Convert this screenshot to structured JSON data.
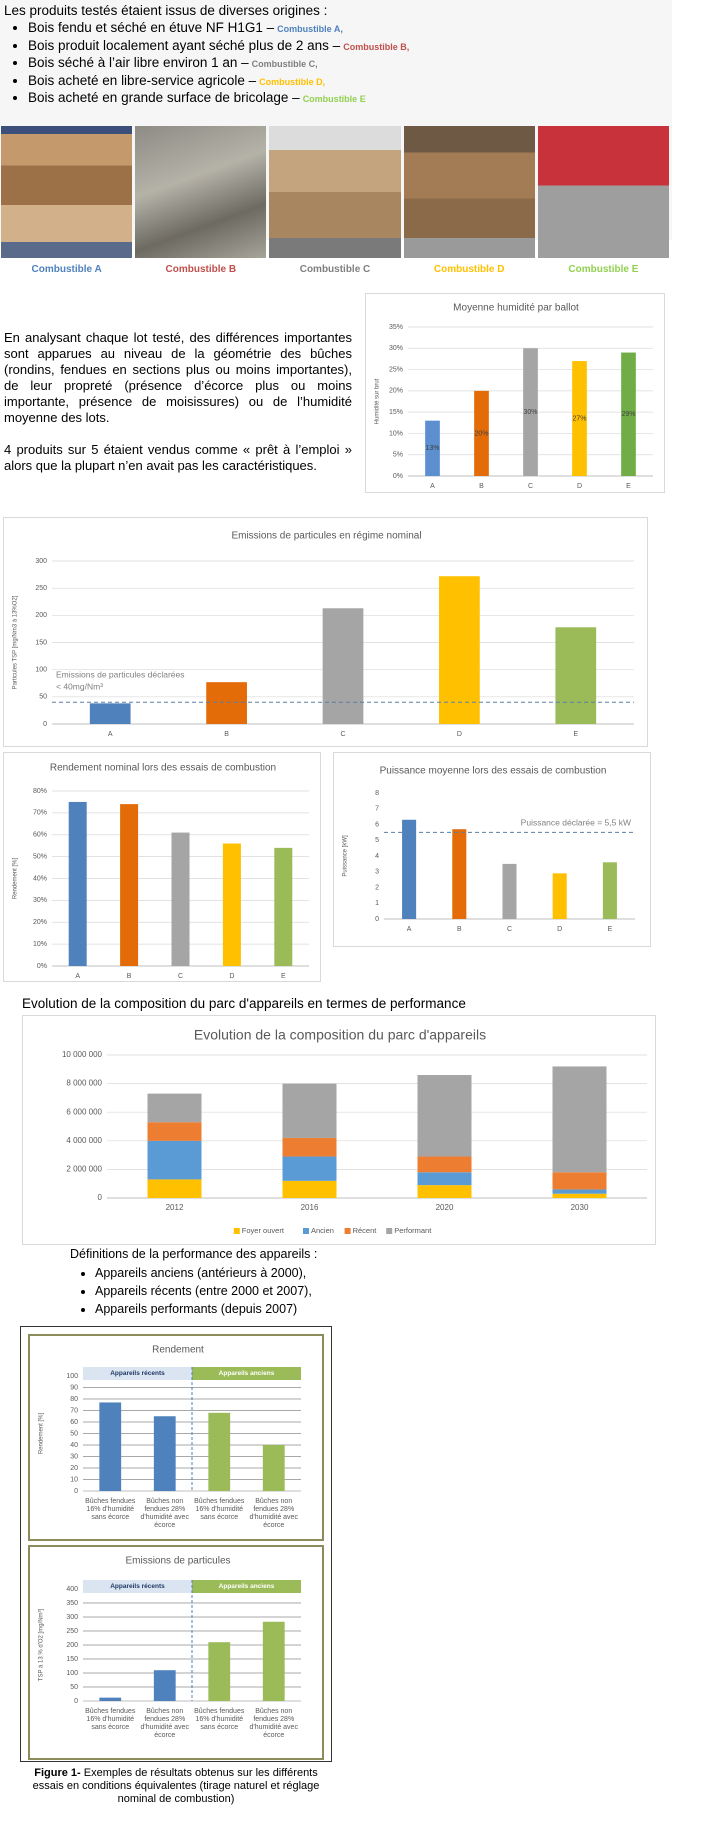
{
  "intro": {
    "heading": "Les produits testés étaient issus de diverses origines :",
    "items": [
      {
        "text": "Bois fendu et séché en étuve NF H1G1 –",
        "label": "Combustible A,",
        "color": "#4f81bd"
      },
      {
        "text": "Bois produit localement ayant séché plus de 2 ans –",
        "label": "Combustible B,",
        "color": "#c0504d"
      },
      {
        "text": "Bois séché à l’air libre environ 1 an –",
        "label": "Combustible C,",
        "color": "#7f7f7f"
      },
      {
        "text": "Bois acheté en libre-service agricole –",
        "label": "Combustible D,",
        "color": "#ffc000"
      },
      {
        "text": "Bois acheté en grande surface de bricolage –",
        "label": "Combustible E",
        "color": "#92d050"
      }
    ]
  },
  "photos": {
    "captions": [
      {
        "text": "Combustible A",
        "color": "#4f81bd"
      },
      {
        "text": "Combustible B",
        "color": "#c0504d"
      },
      {
        "text": "Combustible C",
        "color": "#7f7f7f"
      },
      {
        "text": "Combustible D",
        "color": "#ffc000"
      },
      {
        "text": "Combustible E",
        "color": "#92d050"
      }
    ]
  },
  "analysis": {
    "paragraphs": [
      "En analysant chaque lot testé, des différences importantes sont apparues au niveau de la géométrie des bûches (rondins, fendues en sections plus ou moins importantes), de leur propreté (présence d’écorce plus ou moins importante, présence de moisissures) ou de l’humidité moyenne des lots.",
      "4 produits sur 5 étaient vendus comme « prêt à l’emploi » alors que la plupart n’en avait pas les caractéristiques."
    ]
  },
  "section_title": "Evolution de la composition du parc d'appareils en termes de performance",
  "definitions": {
    "heading": "Définitions de la performance des appareils :",
    "items": [
      "Appareils anciens (antérieurs à 2000),",
      "Appareils récents (entre 2000 et 2007),",
      "Appareils performants (depuis 2007)"
    ]
  },
  "figure_caption": {
    "label": "Figure 1-",
    "text": "Exemples de résultats obtenus sur les différents essais en conditions équivalentes (tirage naturel et réglage nominal de combustion)"
  },
  "chart_data": [
    {
      "type": "bar",
      "title": "Moyenne humidité par ballot",
      "y_label": "Humidité sur brut",
      "categories": [
        "A",
        "B",
        "C",
        "D",
        "E"
      ],
      "values": [
        13,
        20,
        30,
        27,
        29
      ],
      "value_labels": [
        "13%",
        "20%",
        "30%",
        "27%",
        "29%"
      ],
      "colors": [
        "#5b8fd0",
        "#e36c09",
        "#a5a5a5",
        "#ffc000",
        "#70ad47"
      ],
      "ylim": [
        0,
        35
      ],
      "yticks": [
        {
          "value": 0,
          "label": "0%"
        },
        {
          "value": 5,
          "label": "5%"
        },
        {
          "value": 10,
          "label": "10%"
        },
        {
          "value": 15,
          "label": "15%"
        },
        {
          "value": 20,
          "label": "20%"
        },
        {
          "value": 25,
          "label": "25%"
        },
        {
          "value": 30,
          "label": "30%"
        },
        {
          "value": 35,
          "label": "35%"
        }
      ],
      "grid": true
    },
    {
      "type": "bar",
      "title": "Emissions de particules en régime nominal",
      "y_label": "Particules TSP [mg/Nm3 à 13%O2]",
      "categories": [
        "A",
        "B",
        "C",
        "D",
        "E"
      ],
      "values": [
        38,
        77,
        213,
        272,
        178
      ],
      "colors": [
        "#4f81bd",
        "#e36c09",
        "#a5a5a5",
        "#ffc000",
        "#9bbb59"
      ],
      "ylim": [
        0,
        300
      ],
      "yticks": [
        0,
        50,
        100,
        150,
        200,
        250,
        300
      ],
      "grid": true,
      "reference_line": 40,
      "annotations": [
        "Emissions de particules déclarées",
        "< 40mg/Nm³"
      ],
      "annotation_position": "left"
    },
    {
      "type": "bar",
      "title": "Rendement nominal lors des essais de combustion",
      "y_label": "Rendement [%]",
      "categories": [
        "A",
        "B",
        "C",
        "D",
        "E"
      ],
      "values": [
        75,
        74,
        61,
        56,
        54
      ],
      "colors": [
        "#4f81bd",
        "#e36c09",
        "#a5a5a5",
        "#ffc000",
        "#9bbb59"
      ],
      "ylim": [
        0,
        80
      ],
      "yticks": [
        {
          "value": 0,
          "label": "0%"
        },
        {
          "value": 10,
          "label": "10%"
        },
        {
          "value": 20,
          "label": "20%"
        },
        {
          "value": 30,
          "label": "30%"
        },
        {
          "value": 40,
          "label": "40%"
        },
        {
          "value": 50,
          "label": "50%"
        },
        {
          "value": 60,
          "label": "60%"
        },
        {
          "value": 70,
          "label": "70%"
        },
        {
          "value": 80,
          "label": "80%"
        }
      ],
      "grid": true
    },
    {
      "type": "bar",
      "title": "Puissance moyenne lors des essais de combustion",
      "y_label": "Puissance [kW]",
      "categories": [
        "A",
        "B",
        "C",
        "D",
        "E"
      ],
      "values": [
        6.3,
        5.7,
        3.5,
        2.9,
        3.6
      ],
      "colors": [
        "#4f81bd",
        "#e36c09",
        "#a5a5a5",
        "#ffc000",
        "#9bbb59"
      ],
      "ylim": [
        0,
        8
      ],
      "yticks": [
        0,
        1,
        2,
        3,
        4,
        5,
        6,
        7,
        8
      ],
      "grid": false,
      "reference_line": 5.5,
      "annotations": [
        "Puissance déclarée = 5,5 kW"
      ],
      "annotation_position": "right"
    },
    {
      "type": "stacked_bar",
      "title": "Evolution de la composition du parc d'appareils",
      "categories": [
        "2012",
        "2016",
        "2020",
        "2030"
      ],
      "series": [
        {
          "name": "Foyer ouvert",
          "color": "#ffc000",
          "values": [
            1300000,
            1200000,
            900000,
            300000
          ]
        },
        {
          "name": "Ancien",
          "color": "#5b9bd5",
          "values": [
            2700000,
            1700000,
            900000,
            300000
          ]
        },
        {
          "name": "Récent",
          "color": "#ed7d31",
          "values": [
            1300000,
            1300000,
            1100000,
            1200000
          ]
        },
        {
          "name": "Performant",
          "color": "#a5a5a5",
          "values": [
            2000000,
            3800000,
            5700000,
            7400000
          ]
        }
      ],
      "ylim": [
        0,
        10000000
      ],
      "yticks": [
        0,
        {
          "value": 2000000,
          "label": "2 000 000"
        },
        {
          "value": 4000000,
          "label": "4 000 000"
        },
        {
          "value": 6000000,
          "label": "6 000 000"
        },
        {
          "value": 8000000,
          "label": "8 000 000"
        },
        {
          "value": 10000000,
          "label": "10 000 000"
        }
      ],
      "grid": true,
      "legend": "bottom"
    },
    {
      "type": "bar",
      "title": "Rendement",
      "y_label": "Rendement [%]",
      "categories": [
        "Bûches fendues 16% d'humidité sans écorce",
        "Bûches non fendues 28% d'humidité avec écorce",
        "Bûches fendues 16% d'humidité sans écorce",
        "Bûches non fendues 28% d'humidité avec écorce"
      ],
      "values": [
        77,
        65,
        68,
        40
      ],
      "colors": [
        "#4f81bd",
        "#4f81bd",
        "#9bbb59",
        "#9bbb59"
      ],
      "ylim": [
        0,
        100
      ],
      "yticks": [
        0,
        10,
        20,
        30,
        40,
        50,
        60,
        70,
        80,
        90,
        100
      ],
      "grid": true,
      "groups": [
        {
          "name": "Appareils récents",
          "color": "#dbe5f1",
          "text_color": "#1f3864"
        },
        {
          "name": "Appareils anciens",
          "color": "#9bbb59",
          "text_color": "#ffffff"
        }
      ]
    },
    {
      "type": "bar",
      "title": "Emissions de particules",
      "y_label": "TSP à 13 % d'O2 [mg/Nm³]",
      "categories": [
        "Bûches fendues 16% d'humidité sans écorce",
        "Bûches non fendues 28% d'humidité avec écorce",
        "Bûches fendues 16% d'humidité sans écorce",
        "Bûches non fendues 28% d'humidité avec écorce"
      ],
      "values": [
        12,
        110,
        210,
        283
      ],
      "colors": [
        "#4f81bd",
        "#4f81bd",
        "#9bbb59",
        "#9bbb59"
      ],
      "ylim": [
        0,
        400
      ],
      "yticks": [
        0,
        50,
        100,
        150,
        200,
        250,
        300,
        350,
        400
      ],
      "grid": true,
      "groups": [
        {
          "name": "Appareils récents",
          "color": "#dbe5f1",
          "text_color": "#1f3864"
        },
        {
          "name": "Appareils anciens",
          "color": "#9bbb59",
          "text_color": "#ffffff"
        }
      ]
    }
  ]
}
